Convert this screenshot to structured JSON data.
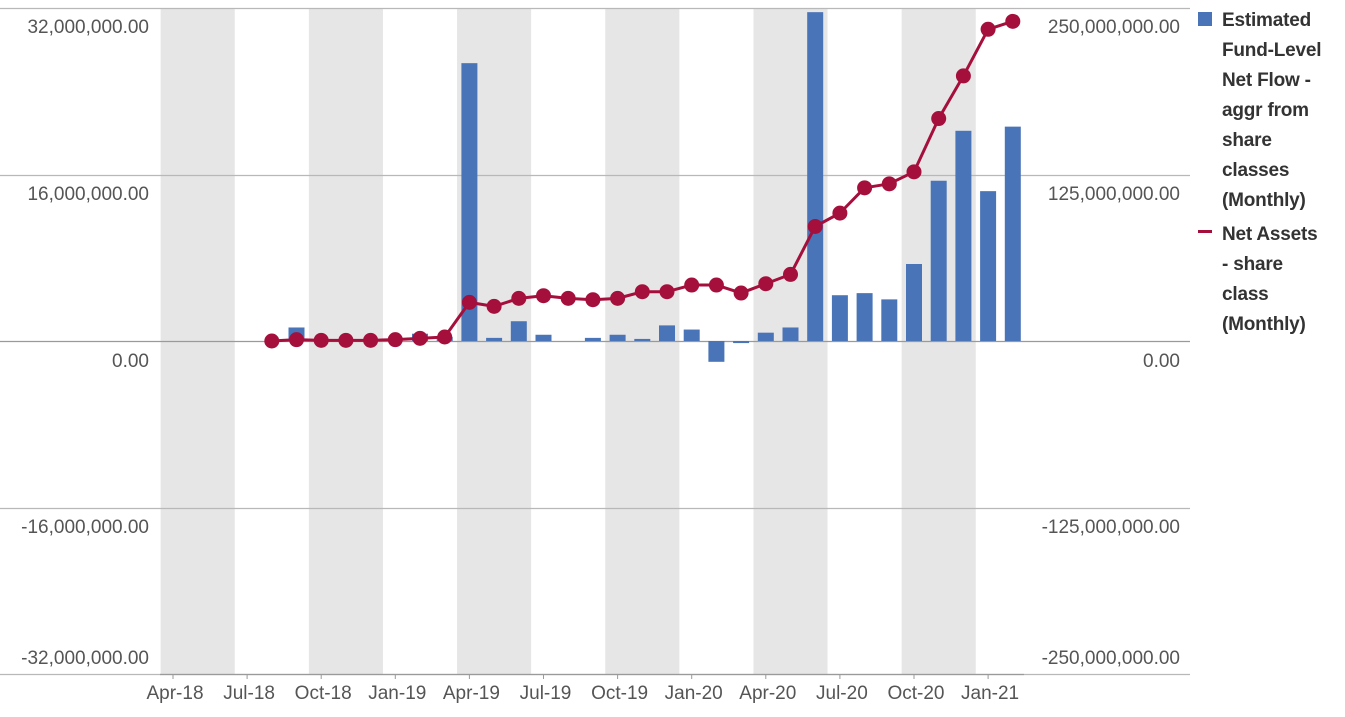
{
  "chart_data": {
    "type": "bar+line",
    "categories": [
      "Apr-18",
      "May-18",
      "Jun-18",
      "Jul-18",
      "Aug-18",
      "Sep-18",
      "Oct-18",
      "Nov-18",
      "Dec-18",
      "Jan-19",
      "Feb-19",
      "Mar-19",
      "Apr-19",
      "May-19",
      "Jun-19",
      "Jul-19",
      "Aug-19",
      "Sep-19",
      "Oct-19",
      "Nov-19",
      "Dec-19",
      "Jan-20",
      "Feb-20",
      "Mar-20",
      "Apr-20",
      "May-20",
      "Jun-20",
      "Jul-20",
      "Aug-20",
      "Sep-20",
      "Oct-20",
      "Nov-20",
      "Dec-20",
      "Jan-21",
      "Feb-21"
    ],
    "x_tick_labels": [
      "Apr-18",
      "Jul-18",
      "Oct-18",
      "Jan-19",
      "Apr-19",
      "Jul-19",
      "Oct-19",
      "Jan-20",
      "Apr-20",
      "Jul-20",
      "Oct-20",
      "Jan-21"
    ],
    "shaded_quarters": [
      "Apr-18",
      "Oct-18",
      "Apr-19",
      "Oct-19",
      "Apr-20",
      "Oct-20"
    ],
    "series": [
      {
        "name": "Estimated Fund-Level Net Flow - aggr from share classes (Monthly)",
        "type": "bar",
        "axis": "left",
        "color": "#4a74b8",
        "values": [
          null,
          null,
          null,
          null,
          null,
          1300000,
          null,
          null,
          null,
          null,
          700000,
          400000,
          26700000,
          300000,
          1900000,
          600000,
          null,
          300000,
          600000,
          200000,
          1500000,
          1100000,
          -2000000,
          -200000,
          800000,
          1300000,
          31600000,
          4400000,
          4600000,
          4000000,
          7400000,
          15400000,
          20200000,
          14400000,
          20600000
        ]
      },
      {
        "name": "Net Assets - share class (Monthly)",
        "type": "line",
        "axis": "right",
        "color": "#a50f3c",
        "values": [
          null,
          null,
          null,
          null,
          0,
          1000000,
          500000,
          500000,
          500000,
          1000000,
          2000000,
          3000000,
          29000000,
          26000000,
          32000000,
          34000000,
          32000000,
          31000000,
          32000000,
          37000000,
          37000000,
          42000000,
          42000000,
          36000000,
          43000000,
          50000000,
          86000000,
          96000000,
          115000000,
          118000000,
          127000000,
          167000000,
          199000000,
          234000000,
          240000000
        ]
      }
    ],
    "y_left": {
      "ylim": [
        -32000000,
        32000000
      ],
      "tick_labels": [
        "32,000,000.00",
        "16,000,000.00",
        "0.00",
        "-16,000,000.00",
        "-32,000,000.00"
      ]
    },
    "y_right": {
      "ylim": [
        -250000000,
        250000000
      ],
      "tick_labels": [
        "250,000,000.00",
        "125,000,000.00",
        "0.00",
        "-125,000,000.00",
        "-250,000,000.00"
      ]
    },
    "grid": true,
    "legend": {
      "position": "right",
      "items": [
        {
          "label_lines": [
            "Estimated",
            "Fund-Level",
            "Net Flow -",
            "aggr from",
            "share",
            "classes",
            "(Monthly)"
          ],
          "color": "#4a74b8",
          "kind": "box"
        },
        {
          "label_lines": [
            "Net Assets",
            "- share",
            "class",
            "(Monthly)"
          ],
          "color": "#a50f3c",
          "kind": "line"
        }
      ]
    }
  }
}
